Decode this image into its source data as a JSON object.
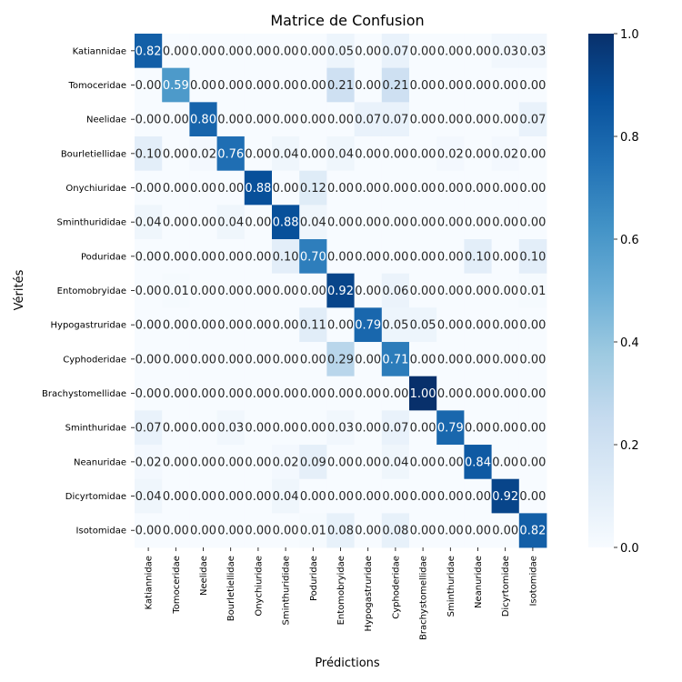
{
  "chart_data": {
    "type": "heatmap",
    "title": "Matrice de Confusion",
    "xlabel": "Prédictions",
    "ylabel": "Vérités",
    "x_categories": [
      "Katiannidae",
      "Tomoceridae",
      "Neelidae",
      "Bourletiellidae",
      "Onychiuridae",
      "Sminthurididae",
      "Poduridae",
      "Entomobryidae",
      "Hypogastruridae",
      "Cyphoderidae",
      "Brachystomellidae",
      "Sminthuridae",
      "Neanuridae",
      "Dicyrtomidae",
      "Isotomidae"
    ],
    "y_categories": [
      "Katiannidae",
      "Tomoceridae",
      "Neelidae",
      "Bourletiellidae",
      "Onychiuridae",
      "Sminthurididae",
      "Poduridae",
      "Entomobryidae",
      "Hypogastruridae",
      "Cyphoderidae",
      "Brachystomellidae",
      "Sminthuridae",
      "Neanuridae",
      "Dicyrtomidae",
      "Isotomidae"
    ],
    "values": [
      [
        0.82,
        0.0,
        0.0,
        0.0,
        0.0,
        0.0,
        0.0,
        0.05,
        0.0,
        0.07,
        0.0,
        0.0,
        0.0,
        0.03,
        0.03
      ],
      [
        0.0,
        0.59,
        0.0,
        0.0,
        0.0,
        0.0,
        0.0,
        0.21,
        0.0,
        0.21,
        0.0,
        0.0,
        0.0,
        0.0,
        0.0
      ],
      [
        0.0,
        0.0,
        0.8,
        0.0,
        0.0,
        0.0,
        0.0,
        0.0,
        0.07,
        0.07,
        0.0,
        0.0,
        0.0,
        0.0,
        0.07
      ],
      [
        0.1,
        0.0,
        0.02,
        0.76,
        0.0,
        0.04,
        0.0,
        0.04,
        0.0,
        0.0,
        0.0,
        0.02,
        0.0,
        0.02,
        0.0
      ],
      [
        0.0,
        0.0,
        0.0,
        0.0,
        0.88,
        0.0,
        0.12,
        0.0,
        0.0,
        0.0,
        0.0,
        0.0,
        0.0,
        0.0,
        0.0
      ],
      [
        0.04,
        0.0,
        0.0,
        0.04,
        0.0,
        0.88,
        0.04,
        0.0,
        0.0,
        0.0,
        0.0,
        0.0,
        0.0,
        0.0,
        0.0
      ],
      [
        0.0,
        0.0,
        0.0,
        0.0,
        0.0,
        0.1,
        0.7,
        0.0,
        0.0,
        0.0,
        0.0,
        0.0,
        0.1,
        0.0,
        0.1
      ],
      [
        0.0,
        0.01,
        0.0,
        0.0,
        0.0,
        0.0,
        0.0,
        0.92,
        0.0,
        0.06,
        0.0,
        0.0,
        0.0,
        0.0,
        0.01
      ],
      [
        0.0,
        0.0,
        0.0,
        0.0,
        0.0,
        0.0,
        0.11,
        0.0,
        0.79,
        0.05,
        0.05,
        0.0,
        0.0,
        0.0,
        0.0
      ],
      [
        0.0,
        0.0,
        0.0,
        0.0,
        0.0,
        0.0,
        0.0,
        0.29,
        0.0,
        0.71,
        0.0,
        0.0,
        0.0,
        0.0,
        0.0
      ],
      [
        0.0,
        0.0,
        0.0,
        0.0,
        0.0,
        0.0,
        0.0,
        0.0,
        0.0,
        0.0,
        1.0,
        0.0,
        0.0,
        0.0,
        0.0
      ],
      [
        0.07,
        0.0,
        0.0,
        0.03,
        0.0,
        0.0,
        0.0,
        0.03,
        0.0,
        0.07,
        0.0,
        0.79,
        0.0,
        0.0,
        0.0
      ],
      [
        0.02,
        0.0,
        0.0,
        0.0,
        0.0,
        0.02,
        0.09,
        0.0,
        0.0,
        0.04,
        0.0,
        0.0,
        0.84,
        0.0,
        0.0
      ],
      [
        0.04,
        0.0,
        0.0,
        0.0,
        0.0,
        0.04,
        0.0,
        0.0,
        0.0,
        0.0,
        0.0,
        0.0,
        0.0,
        0.92,
        0.0
      ],
      [
        0.0,
        0.0,
        0.0,
        0.0,
        0.0,
        0.0,
        0.01,
        0.08,
        0.0,
        0.08,
        0.0,
        0.0,
        0.0,
        0.0,
        0.82
      ]
    ],
    "value_range": [
      0,
      1
    ],
    "colormap": "Blues",
    "colorbar_ticks": [
      "0.0",
      "0.2",
      "0.4",
      "0.6",
      "0.8",
      "1.0"
    ],
    "grid": false,
    "annotations_format": "2 decimals"
  }
}
